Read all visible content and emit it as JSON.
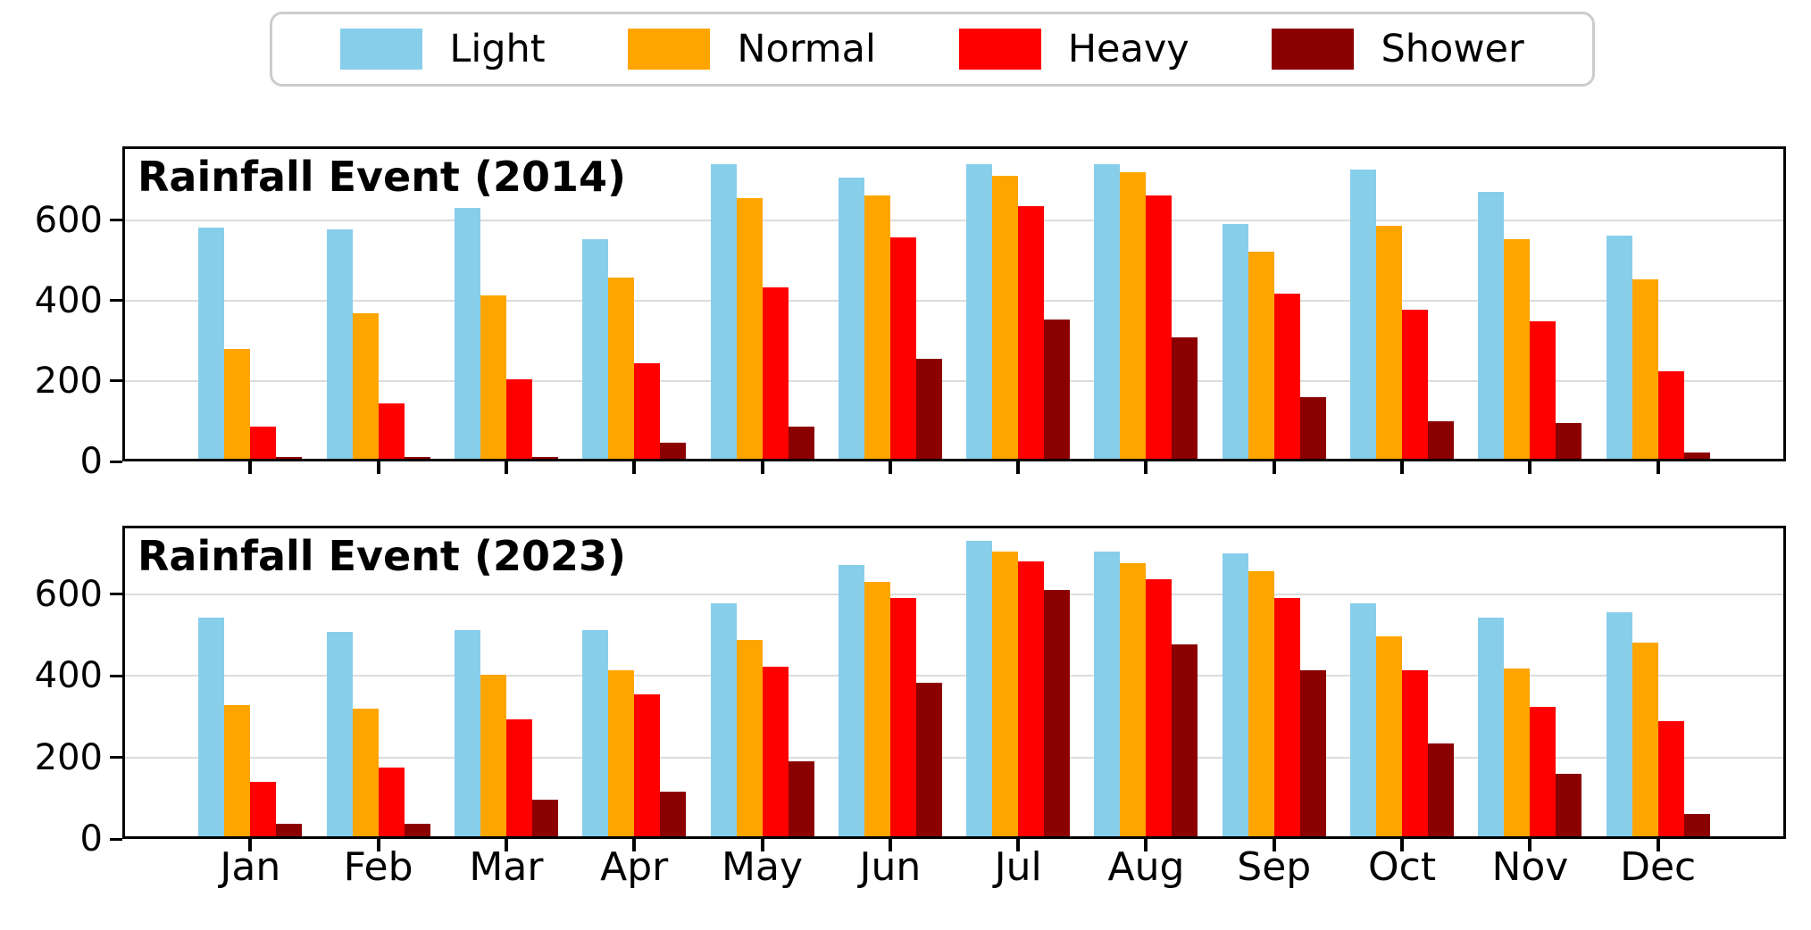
{
  "legend": {
    "items": [
      {
        "label": "Light",
        "color": "#87CEEB"
      },
      {
        "label": "Normal",
        "color": "#FFA500"
      },
      {
        "label": "Heavy",
        "color": "#FF0000"
      },
      {
        "label": "Shower",
        "color": "#8B0000"
      }
    ]
  },
  "months": [
    "Jan",
    "Feb",
    "Mar",
    "Apr",
    "May",
    "Jun",
    "Jul",
    "Aug",
    "Sep",
    "Oct",
    "Nov",
    "Dec"
  ],
  "chart_data": [
    {
      "type": "bar",
      "title": "Rainfall Event (2014)",
      "categories": [
        "Jan",
        "Feb",
        "Mar",
        "Apr",
        "May",
        "Jun",
        "Jul",
        "Aug",
        "Sep",
        "Oct",
        "Nov",
        "Dec"
      ],
      "xlabel": "",
      "ylabel": "",
      "yticks": [
        0,
        200,
        400,
        600
      ],
      "ylim": [
        0,
        784
      ],
      "grid": true,
      "series": [
        {
          "name": "Light",
          "color": "#87CEEB",
          "values": [
            580,
            575,
            630,
            550,
            740,
            705,
            740,
            740,
            590,
            725,
            670,
            560
          ]
        },
        {
          "name": "Normal",
          "color": "#FFA500",
          "values": [
            275,
            365,
            410,
            455,
            655,
            660,
            710,
            720,
            520,
            585,
            550,
            450
          ]
        },
        {
          "name": "Heavy",
          "color": "#FF0000",
          "values": [
            80,
            140,
            200,
            240,
            430,
            555,
            635,
            660,
            415,
            375,
            345,
            220
          ]
        },
        {
          "name": "Shower",
          "color": "#8B0000",
          "values": [
            5,
            5,
            5,
            40,
            80,
            250,
            350,
            305,
            155,
            95,
            90,
            15
          ]
        }
      ]
    },
    {
      "type": "bar",
      "title": "Rainfall Event (2023)",
      "categories": [
        "Jan",
        "Feb",
        "Mar",
        "Apr",
        "May",
        "Jun",
        "Jul",
        "Aug",
        "Sep",
        "Oct",
        "Nov",
        "Dec"
      ],
      "xlabel": "",
      "ylabel": "",
      "yticks": [
        0,
        200,
        400,
        600
      ],
      "ylim": [
        0,
        768
      ],
      "grid": true,
      "series": [
        {
          "name": "Light",
          "color": "#87CEEB",
          "values": [
            540,
            505,
            510,
            510,
            575,
            670,
            730,
            705,
            700,
            575,
            540,
            555
          ]
        },
        {
          "name": "Normal",
          "color": "#FFA500",
          "values": [
            325,
            315,
            400,
            410,
            485,
            630,
            705,
            675,
            655,
            495,
            415,
            480
          ]
        },
        {
          "name": "Heavy",
          "color": "#FF0000",
          "values": [
            135,
            170,
            290,
            350,
            420,
            590,
            680,
            635,
            590,
            410,
            320,
            285
          ]
        },
        {
          "name": "Shower",
          "color": "#8B0000",
          "values": [
            30,
            30,
            90,
            110,
            185,
            380,
            610,
            475,
            410,
            230,
            155,
            55
          ]
        }
      ]
    }
  ]
}
